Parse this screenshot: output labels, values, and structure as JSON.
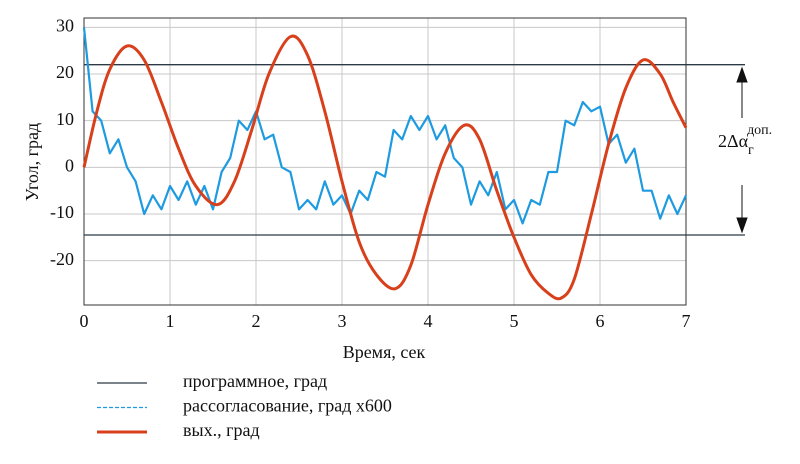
{
  "chart_data": {
    "type": "line",
    "xlabel": "Время, сек",
    "ylabel": "Угол, град",
    "xlim": [
      0,
      7
    ],
    "ylim": [
      -29.5,
      32
    ],
    "xticks": [
      0,
      1,
      2,
      3,
      4,
      5,
      6,
      7
    ],
    "yticks": [
      -20,
      -10,
      0,
      10,
      20,
      30
    ],
    "grid": true,
    "hlines": [
      22,
      -14.5
    ],
    "annotation": {
      "text": "2Δα",
      "sub": "г",
      "sup": "доп."
    },
    "series": [
      {
        "name": "программное, град",
        "color": "#2b3a44",
        "dash": false
      },
      {
        "name": "рассогласование, град x600",
        "color": "#1e9be0",
        "dash": true,
        "x": [
          0,
          0.1,
          0.2,
          0.3,
          0.4,
          0.5,
          0.6,
          0.7,
          0.8,
          0.9,
          1,
          1.1,
          1.2,
          1.3,
          1.4,
          1.5,
          1.6,
          1.7,
          1.8,
          1.9,
          2,
          2.1,
          2.2,
          2.3,
          2.4,
          2.5,
          2.6,
          2.7,
          2.8,
          2.9,
          3,
          3.1,
          3.2,
          3.3,
          3.4,
          3.5,
          3.6,
          3.7,
          3.8,
          3.9,
          4,
          4.1,
          4.2,
          4.3,
          4.4,
          4.5,
          4.6,
          4.7,
          4.8,
          4.9,
          5,
          5.1,
          5.2,
          5.3,
          5.4,
          5.5,
          5.6,
          5.7,
          5.8,
          5.9,
          6,
          6.1,
          6.2,
          6.3,
          6.4,
          6.5,
          6.6,
          6.7,
          6.8,
          6.9,
          7
        ],
        "values": [
          30,
          12,
          10,
          3,
          6,
          0,
          -3,
          -10,
          -6,
          -9,
          -4,
          -7,
          -3,
          -8,
          -4,
          -9,
          -1,
          2,
          10,
          8,
          12,
          6,
          7,
          0,
          -1,
          -9,
          -7,
          -9,
          -3,
          -8,
          -6,
          -10,
          -5,
          -7,
          -1,
          -2,
          8,
          6,
          11,
          8,
          11,
          6,
          9,
          2,
          0,
          -8,
          -3,
          -6,
          -1,
          -9,
          -7,
          -12,
          -7,
          -8,
          -1,
          -1,
          10,
          9,
          14,
          12,
          13,
          5,
          7,
          1,
          4,
          -5,
          -5,
          -11,
          -6,
          -10,
          -6
        ]
      },
      {
        "name": "вых., град",
        "color": "#d8401c",
        "dash": false,
        "x": [
          0,
          0.15,
          0.3,
          0.5,
          0.7,
          0.9,
          1.1,
          1.3,
          1.55,
          1.75,
          1.95,
          2.15,
          2.4,
          2.6,
          2.8,
          3,
          3.2,
          3.4,
          3.62,
          3.8,
          4,
          4.2,
          4.42,
          4.6,
          4.8,
          5,
          5.2,
          5.4,
          5.55,
          5.7,
          5.9,
          6.1,
          6.3,
          6.5,
          6.7,
          6.85,
          7
        ],
        "values": [
          0,
          12,
          21,
          26,
          23,
          14,
          4,
          -4,
          -8,
          -3,
          8,
          20,
          28,
          24,
          12,
          -3,
          -16,
          -23,
          -26,
          -21,
          -8,
          3,
          9,
          6,
          -5,
          -15,
          -23,
          -27,
          -28,
          -24,
          -10,
          5,
          17,
          23,
          20,
          14,
          8.5
        ]
      }
    ]
  }
}
